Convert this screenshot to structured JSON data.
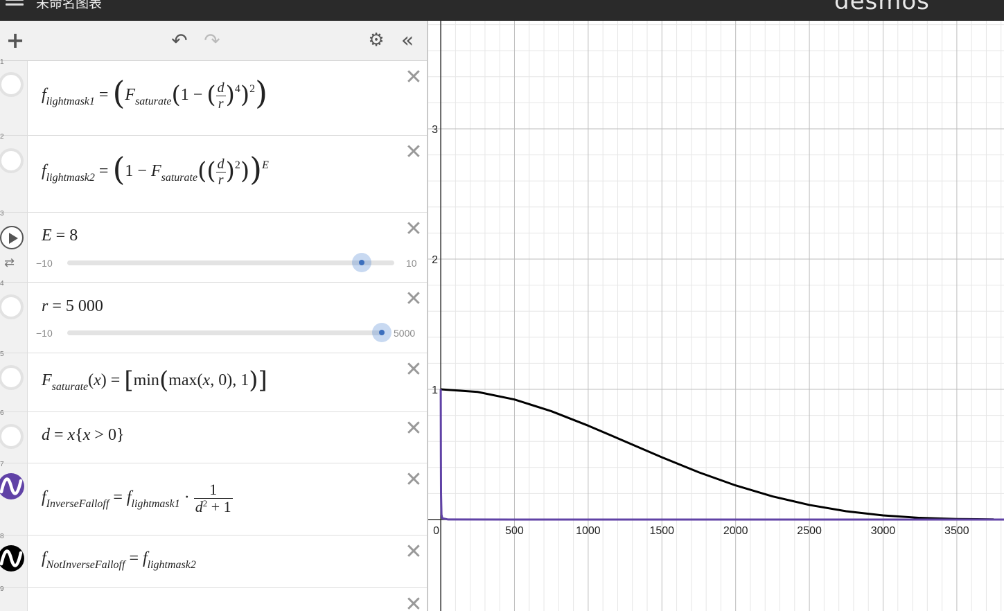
{
  "app": {
    "title": "未命名图表",
    "brand": "desmos"
  },
  "toolbar": {
    "add_icon": "plus-icon",
    "undo_icon": "undo-icon",
    "redo_icon": "redo-icon",
    "settings_icon": "gear-icon",
    "collapse_icon": "double-chevron-left-icon"
  },
  "expressions": [
    {
      "index": "1",
      "latex": "f_{lightmask1} = (F_{saturate}(1 - (d/r)^4)^2)"
    },
    {
      "index": "2",
      "latex": "f_{lightmask2} = (1 - F_{saturate}((d/r)^2))^E"
    },
    {
      "index": "3",
      "latex": "E = 8",
      "slider": {
        "min": "−10",
        "max": "10",
        "value": 8
      }
    },
    {
      "index": "4",
      "latex": "r = 5 000",
      "slider": {
        "min": "−10",
        "max": "5000",
        "value": 5000
      }
    },
    {
      "index": "5",
      "latex": "F_{saturate}(x) = [min(max(x, 0), 1)]"
    },
    {
      "index": "6",
      "latex": "d = x{x > 0}"
    },
    {
      "index": "7",
      "latex": "f_{InverseFalloff} = f_{lightmask1} · 1/(d^2 + 1)",
      "color": "#6042a6"
    },
    {
      "index": "8",
      "latex": "f_{NotInverseFalloff} = f_{lightmask2}",
      "color": "#000000"
    },
    {
      "index": "9",
      "latex": ""
    }
  ],
  "text": {
    "f": "f",
    "F": "F",
    "E": "E",
    "r": "r",
    "d": "d",
    "x": "x",
    "sub_lm1": "lightmask1",
    "sub_lm2": "lightmask2",
    "sub_sat": "saturate",
    "sub_inv": "InverseFalloff",
    "sub_notinv": "NotInverseFalloff",
    "eq": "=",
    "one": "1",
    "minus": "−",
    "four": "4",
    "two": "2",
    "E_val": "8",
    "r_val": "5 000",
    "min_fn": "min",
    "max_fn": "max",
    "zero": "0",
    "gt": ">",
    "plus": "+",
    "cdot": "·",
    "comma": ","
  },
  "graph": {
    "x_ticks": [
      "0",
      "500",
      "1000",
      "1500",
      "2000",
      "2500",
      "3000",
      "3500"
    ],
    "y_ticks": [
      "1",
      "2",
      "3"
    ],
    "xlim": [
      -85,
      3820
    ],
    "ylim": [
      0,
      3.95
    ]
  },
  "chart_data": {
    "type": "line",
    "title": "",
    "xlabel": "",
    "ylabel": "",
    "xlim": [
      -85,
      3820
    ],
    "ylim": [
      0,
      3.95
    ],
    "grid": true,
    "series": [
      {
        "color": "#000000",
        "x": [
          0,
          250,
          500,
          750,
          1000,
          1250,
          1500,
          1750,
          2000,
          2250,
          2500,
          2750,
          3000,
          3250,
          3500,
          3750
        ],
        "y": [
          1.0,
          0.98,
          0.922,
          0.832,
          0.721,
          0.6,
          0.478,
          0.363,
          0.262,
          0.178,
          0.112,
          0.064,
          0.032,
          0.013,
          0.004,
          0.001
        ]
      },
      {
        "color": "#6042a6",
        "x": [
          0,
          1,
          2,
          5,
          10,
          50,
          500,
          1000,
          2000,
          3000,
          3820
        ],
        "y": [
          1.0,
          0.5,
          0.2,
          0.038,
          0.0099,
          0.0004,
          0.0,
          0.0,
          0.0,
          0.0,
          0.0
        ]
      }
    ]
  }
}
